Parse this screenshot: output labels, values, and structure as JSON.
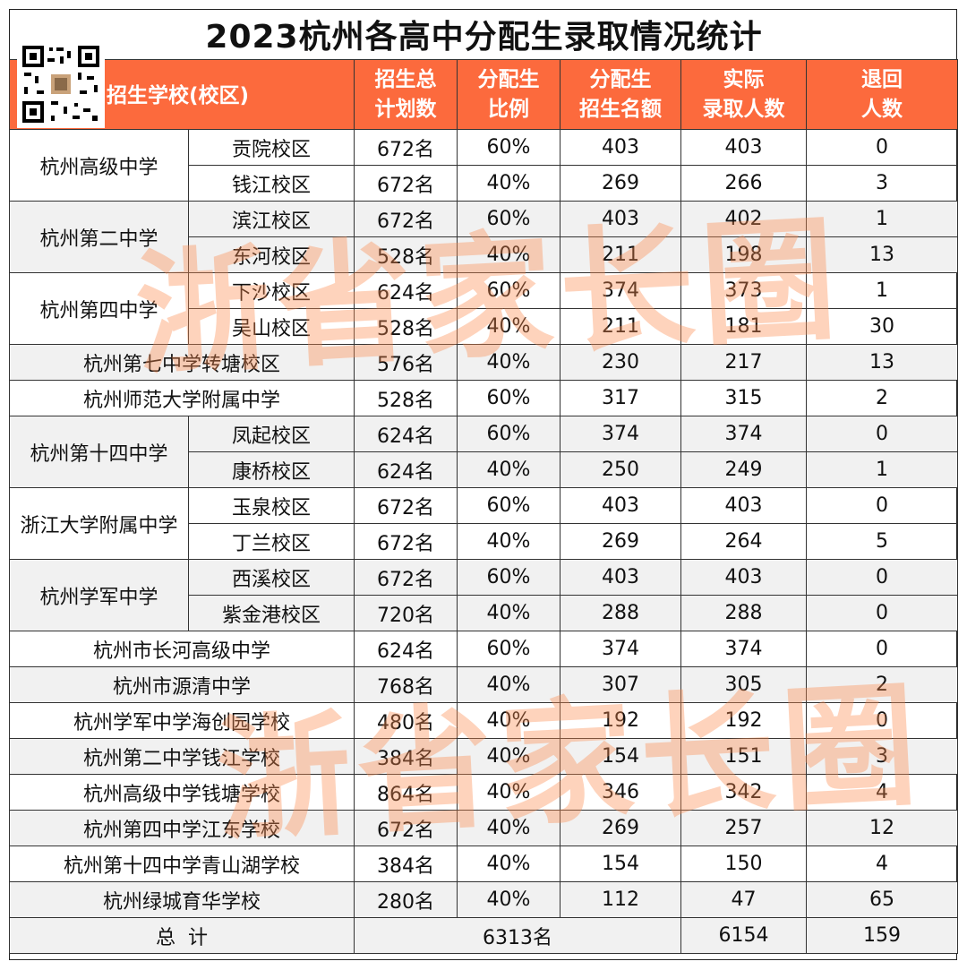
{
  "title": "2023杭州各高中分配生录取情况统计",
  "header": {
    "school_label": "招生学校(校区)",
    "plan_label_1": "招生总",
    "plan_label_2": "计划数",
    "ratio_label_1": "分配生",
    "ratio_label_2": "比例",
    "quota_label_1": "分配生",
    "quota_label_2": "招生名额",
    "admit_label_1": "实际",
    "admit_label_2": "录取人数",
    "return_label_1": "退回",
    "return_label_2": "人数"
  },
  "watermark": "浙省家长圈",
  "rows": [
    {
      "school": "杭州高级中学",
      "campus": "贡院校区",
      "plan": "672名",
      "ratio": "60%",
      "quota": "403",
      "admitted": "403",
      "returned": "0"
    },
    {
      "school": "杭州高级中学",
      "campus": "钱江校区",
      "plan": "672名",
      "ratio": "40%",
      "quota": "269",
      "admitted": "266",
      "returned": "3"
    },
    {
      "school": "杭州第二中学",
      "campus": "滨江校区",
      "plan": "672名",
      "ratio": "60%",
      "quota": "403",
      "admitted": "402",
      "returned": "1"
    },
    {
      "school": "杭州第二中学",
      "campus": "东河校区",
      "plan": "528名",
      "ratio": "40%",
      "quota": "211",
      "admitted": "198",
      "returned": "13"
    },
    {
      "school": "杭州第四中学",
      "campus": "下沙校区",
      "plan": "624名",
      "ratio": "60%",
      "quota": "374",
      "admitted": "373",
      "returned": "1"
    },
    {
      "school": "杭州第四中学",
      "campus": "吴山校区",
      "plan": "528名",
      "ratio": "40%",
      "quota": "211",
      "admitted": "181",
      "returned": "30"
    },
    {
      "school": "杭州第七中学转塘校区",
      "campus": "",
      "plan": "576名",
      "ratio": "40%",
      "quota": "230",
      "admitted": "217",
      "returned": "13"
    },
    {
      "school": "杭州师范大学附属中学",
      "campus": "",
      "plan": "528名",
      "ratio": "60%",
      "quota": "317",
      "admitted": "315",
      "returned": "2"
    },
    {
      "school": "杭州第十四中学",
      "campus": "凤起校区",
      "plan": "624名",
      "ratio": "60%",
      "quota": "374",
      "admitted": "374",
      "returned": "0"
    },
    {
      "school": "杭州第十四中学",
      "campus": "康桥校区",
      "plan": "624名",
      "ratio": "40%",
      "quota": "250",
      "admitted": "249",
      "returned": "1"
    },
    {
      "school": "浙江大学附属中学",
      "campus": "玉泉校区",
      "plan": "672名",
      "ratio": "60%",
      "quota": "403",
      "admitted": "403",
      "returned": "0"
    },
    {
      "school": "浙江大学附属中学",
      "campus": "丁兰校区",
      "plan": "672名",
      "ratio": "40%",
      "quota": "269",
      "admitted": "264",
      "returned": "5"
    },
    {
      "school": "杭州学军中学",
      "campus": "西溪校区",
      "plan": "672名",
      "ratio": "60%",
      "quota": "403",
      "admitted": "403",
      "returned": "0"
    },
    {
      "school": "杭州学军中学",
      "campus": "紫金港校区",
      "plan": "720名",
      "ratio": "40%",
      "quota": "288",
      "admitted": "288",
      "returned": "0"
    },
    {
      "school": "杭州市长河高级中学",
      "campus": "",
      "plan": "624名",
      "ratio": "60%",
      "quota": "374",
      "admitted": "374",
      "returned": "0"
    },
    {
      "school": "杭州市源清中学",
      "campus": "",
      "plan": "768名",
      "ratio": "40%",
      "quota": "307",
      "admitted": "305",
      "returned": "2"
    },
    {
      "school": "杭州学军中学海创园学校",
      "campus": "",
      "plan": "480名",
      "ratio": "40%",
      "quota": "192",
      "admitted": "192",
      "returned": "0"
    },
    {
      "school": "杭州第二中学钱江学校",
      "campus": "",
      "plan": "384名",
      "ratio": "40%",
      "quota": "154",
      "admitted": "151",
      "returned": "3"
    },
    {
      "school": "杭州高级中学钱塘学校",
      "campus": "",
      "plan": "864名",
      "ratio": "40%",
      "quota": "346",
      "admitted": "342",
      "returned": "4"
    },
    {
      "school": "杭州第四中学江东学校",
      "campus": "",
      "plan": "672名",
      "ratio": "40%",
      "quota": "269",
      "admitted": "257",
      "returned": "12"
    },
    {
      "school": "杭州第十四中学青山湖学校",
      "campus": "",
      "plan": "384名",
      "ratio": "40%",
      "quota": "154",
      "admitted": "150",
      "returned": "4"
    },
    {
      "school": "杭州绿城育华学校",
      "campus": "",
      "plan": "280名",
      "ratio": "40%",
      "quota": "112",
      "admitted": "47",
      "returned": "65"
    }
  ],
  "total": {
    "label": "总  计",
    "quota_total": "6313名",
    "admitted_total": "6154",
    "returned_total": "159"
  },
  "colors": {
    "header_bg": "#fc6a3d",
    "header_text": "#ffffff",
    "watermark": "#fc8c50"
  }
}
